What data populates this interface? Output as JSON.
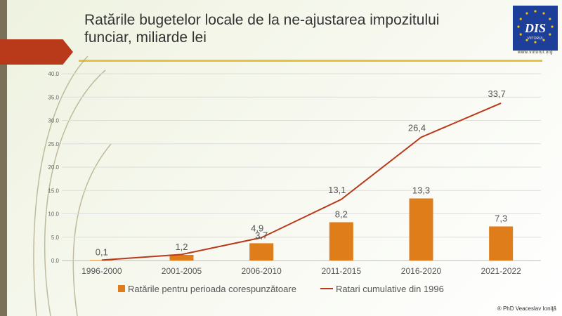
{
  "slide": {
    "title": "Ratările bugetelor locale de la ne-ajustarea impozitului funciar, miliarde lei",
    "logo_text": "DIS",
    "logo_subtext": "VIITORUL",
    "logo_url": "www.viitorul.org",
    "footer": "® PhD Veaceslav Ioniţă"
  },
  "colors": {
    "bar": "#e07d1b",
    "line": "#b83a1b",
    "accent_rule": "#e8c23a",
    "logo_bg": "#1d3f9a",
    "sidebar": "#7a7158"
  },
  "chart_data": {
    "type": "bar+line",
    "title": "",
    "xlabel": "",
    "ylabel": "",
    "categories": [
      "1996-2000",
      "2001-2005",
      "2006-2010",
      "2011-2015",
      "2016-2020",
      "2021-2022"
    ],
    "ylim": [
      0,
      40
    ],
    "yticks": [
      "0.0",
      "5.0",
      "10.0",
      "15.0",
      "20.0",
      "25.0",
      "30.0",
      "35.0",
      "40.0"
    ],
    "grid": true,
    "legend_position": "bottom",
    "series": [
      {
        "name": "Ratările pentru perioada corespunzătoare",
        "type": "bar",
        "values": [
          0.1,
          1.2,
          3.7,
          8.2,
          13.3,
          7.3
        ],
        "labels": [
          "0,1",
          "1,2",
          "3,7",
          "8,2",
          "13,3",
          "7,3"
        ]
      },
      {
        "name": "Ratari cumulative din 1996",
        "type": "line",
        "values": [
          0.1,
          1.3,
          4.9,
          13.1,
          26.4,
          33.7
        ],
        "labels": [
          "",
          "",
          "4,9",
          "13,1",
          "26,4",
          "33,7"
        ]
      }
    ]
  }
}
